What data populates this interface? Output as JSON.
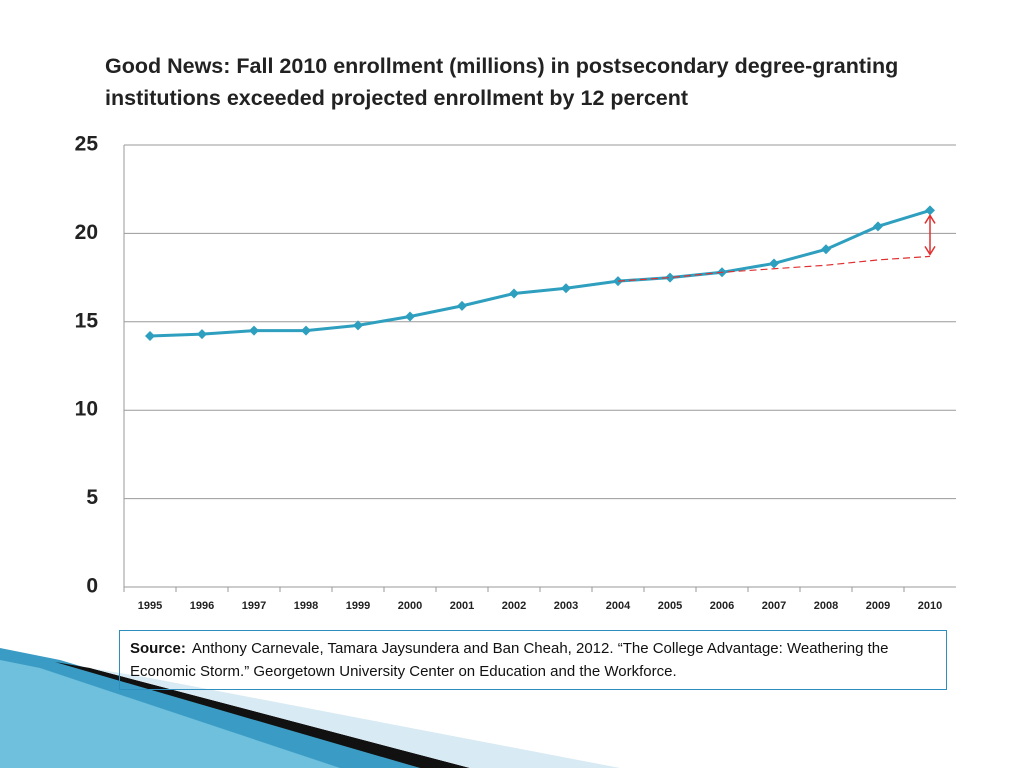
{
  "chart_data": {
    "type": "line",
    "title": "Good News: Fall 2010 enrollment (millions) in postsecondary degree-granting institutions exceeded projected enrollment by 12 percent",
    "categories": [
      "1995",
      "1996",
      "1997",
      "1998",
      "1999",
      "2000",
      "2001",
      "2002",
      "2003",
      "2004",
      "2005",
      "2006",
      "2007",
      "2008",
      "2009",
      "2010"
    ],
    "series": [
      {
        "color": "#2e9fbf",
        "values": [
          14.2,
          14.3,
          14.5,
          14.5,
          14.8,
          15.3,
          15.9,
          16.6,
          16.9,
          17.3,
          17.5,
          17.8,
          18.3,
          19.1,
          20.4,
          21.3
        ]
      },
      {
        "color": "#e03030",
        "dashed": true,
        "values": [
          null,
          null,
          null,
          null,
          null,
          null,
          null,
          null,
          null,
          17.3,
          17.5,
          17.8,
          18.0,
          18.2,
          18.5,
          18.7
        ]
      }
    ],
    "ylim": [
      0,
      25
    ],
    "yticks": [
      0,
      5,
      10,
      15,
      20,
      25
    ],
    "grid": true
  },
  "source": {
    "label": "Source:",
    "text": "Anthony Carnevale, Tamara Jaysundera and Ban Cheah, 2012. “The College Advantage: Weathering the Economic Storm.” Georgetown University Center on Education and the Workforce."
  }
}
